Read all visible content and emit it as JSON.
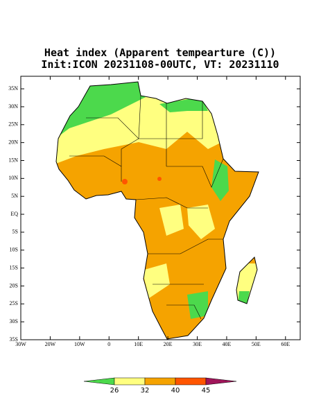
{
  "title": [
    "Heat index (Apparent tempearture (C))",
    "Init:ICON 20231108-00UTC, VT: 20231110"
  ],
  "map": {
    "xlim": [
      -30,
      65
    ],
    "ylim": [
      -35,
      38.5
    ],
    "lat_ticks": [
      {
        "value": 35,
        "label": "35N"
      },
      {
        "value": 30,
        "label": "30N"
      },
      {
        "value": 25,
        "label": "25N"
      },
      {
        "value": 20,
        "label": "20N"
      },
      {
        "value": 15,
        "label": "15N"
      },
      {
        "value": 10,
        "label": "10N"
      },
      {
        "value": 5,
        "label": "5N"
      },
      {
        "value": 0,
        "label": "EQ"
      },
      {
        "value": -5,
        "label": "5S"
      },
      {
        "value": -10,
        "label": "10S"
      },
      {
        "value": -15,
        "label": "15S"
      },
      {
        "value": -20,
        "label": "20S"
      },
      {
        "value": -25,
        "label": "25S"
      },
      {
        "value": -30,
        "label": "30S"
      },
      {
        "value": -35,
        "label": "35S"
      }
    ],
    "lon_ticks": [
      {
        "value": -30,
        "label": "30W"
      },
      {
        "value": -20,
        "label": "20W"
      },
      {
        "value": -10,
        "label": "10W"
      },
      0,
      {
        "value": 10,
        "label": "10E"
      },
      {
        "value": 20,
        "label": "20E"
      },
      {
        "value": 30,
        "label": "30E"
      },
      {
        "value": 40,
        "label": "40E"
      },
      {
        "value": 50,
        "label": "50E"
      },
      {
        "value": 60,
        "label": "60E"
      }
    ]
  },
  "colorbar": {
    "levels": [
      26,
      32,
      40,
      45
    ],
    "colors": [
      "#4cd94c",
      "#ffff80",
      "#f5a300",
      "#ff5500",
      "#a0155a"
    ]
  }
}
